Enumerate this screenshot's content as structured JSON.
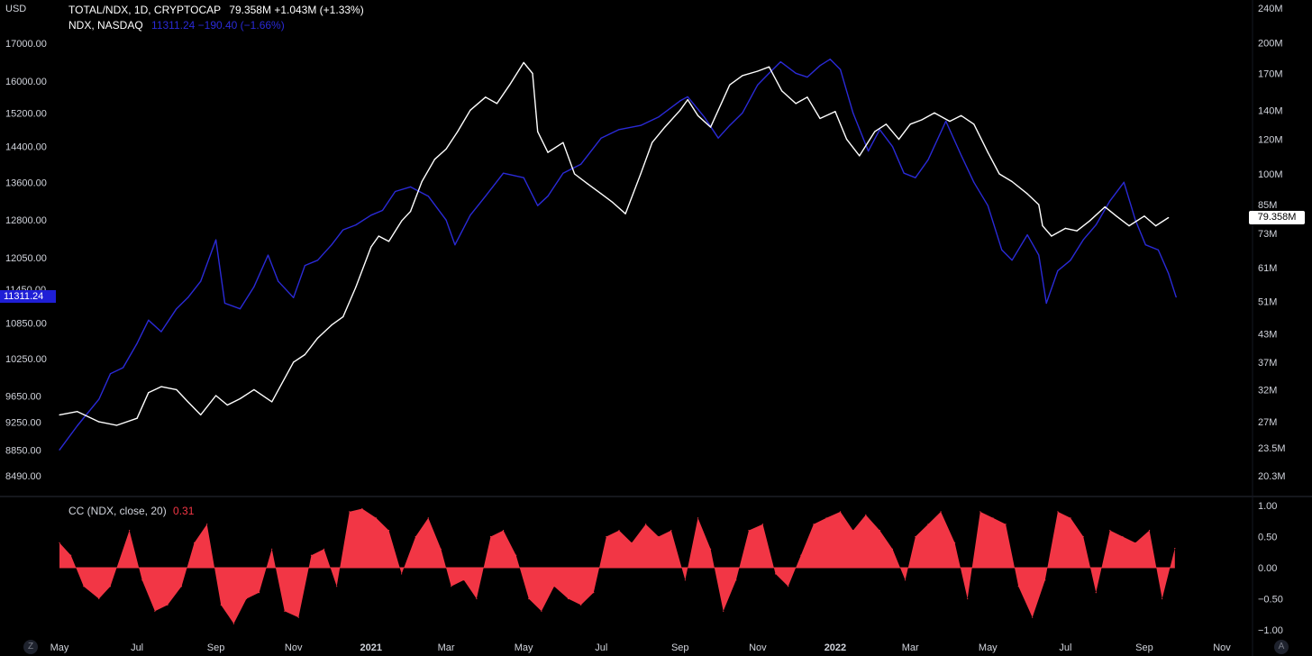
{
  "header": {
    "currency": "USD",
    "main_symbol": "TOTAL/NDX, 1D, CRYPTOCAP",
    "main_values": "79.358M  +1.043M (+1.33%)",
    "compare_symbol": "NDX, NASDAQ",
    "compare_values": "11311.24  −190.40 (−1.66%)"
  },
  "price_tags": {
    "ndx": "11311.24",
    "total": "79.358M"
  },
  "indicator": {
    "label": "CC (NDX, close, 20)",
    "value": "0.31"
  },
  "corner_buttons": {
    "left": "Z",
    "right": "A"
  },
  "colors": {
    "total": "#ffffff",
    "ndx": "#2a2ad6",
    "cc": "#f23645",
    "background": "#000000"
  },
  "chart_data": [
    {
      "type": "line",
      "title": "TOTAL/NDX, 1D, CRYPTOCAP",
      "x_labels": [
        "May",
        "Jul",
        "Sep",
        "Nov",
        "2021",
        "Mar",
        "May",
        "Jul",
        "Sep",
        "Nov",
        "2022",
        "Mar",
        "May",
        "Jul",
        "Sep",
        "Nov"
      ],
      "left_axis_ticks": [
        "17000.00",
        "16000.00",
        "15200.00",
        "14400.00",
        "13600.00",
        "12800.00",
        "12050.00",
        "11450.00",
        "10850.00",
        "10250.00",
        "9650.00",
        "9250.00",
        "8850.00",
        "8490.00"
      ],
      "right_axis_ticks": [
        "240M",
        "200M",
        "170M",
        "140M",
        "120M",
        "100M",
        "85M",
        "73M",
        "61M",
        "51M",
        "43M",
        "37M",
        "32M",
        "27M",
        "23.5M",
        "20.3M"
      ],
      "series": [
        {
          "name": "TOTAL/NDX",
          "axis": "right",
          "dates": [
            "2020-05-01",
            "2020-05-15",
            "2020-06-01",
            "2020-06-15",
            "2020-07-01",
            "2020-07-10",
            "2020-07-20",
            "2020-08-01",
            "2020-08-10",
            "2020-08-20",
            "2020-09-01",
            "2020-09-10",
            "2020-09-20",
            "2020-10-01",
            "2020-10-15",
            "2020-11-01",
            "2020-11-10",
            "2020-11-20",
            "2020-12-01",
            "2020-12-10",
            "2020-12-20",
            "2021-01-01",
            "2021-01-07",
            "2021-01-15",
            "2021-01-25",
            "2021-02-01",
            "2021-02-10",
            "2021-02-20",
            "2021-03-01",
            "2021-03-10",
            "2021-03-20",
            "2021-04-01",
            "2021-04-10",
            "2021-04-20",
            "2021-05-01",
            "2021-05-08",
            "2021-05-12",
            "2021-05-20",
            "2021-06-01",
            "2021-06-10",
            "2021-06-20",
            "2021-07-01",
            "2021-07-10",
            "2021-07-20",
            "2021-08-01",
            "2021-08-10",
            "2021-08-20",
            "2021-09-01",
            "2021-09-07",
            "2021-09-15",
            "2021-09-25",
            "2021-10-01",
            "2021-10-10",
            "2021-10-20",
            "2021-11-01",
            "2021-11-10",
            "2021-11-20",
            "2021-12-01",
            "2021-12-10",
            "2021-12-20",
            "2022-01-01",
            "2022-01-10",
            "2022-01-20",
            "2022-02-01",
            "2022-02-10",
            "2022-02-20",
            "2022-03-01",
            "2022-03-10",
            "2022-03-20",
            "2022-04-01",
            "2022-04-10",
            "2022-04-20",
            "2022-05-01",
            "2022-05-10",
            "2022-05-20",
            "2022-06-01",
            "2022-06-10",
            "2022-06-13",
            "2022-06-20",
            "2022-07-01",
            "2022-07-10",
            "2022-07-20",
            "2022-08-01",
            "2022-08-10",
            "2022-08-20",
            "2022-09-01",
            "2022-09-10",
            "2022-09-20"
          ],
          "values": [
            28.0,
            28.5,
            27.0,
            26.5,
            27.5,
            31.5,
            32.5,
            32.0,
            30.0,
            28.0,
            31.0,
            29.5,
            30.5,
            32.0,
            30.0,
            37.0,
            38.5,
            42.0,
            45.0,
            47.0,
            55.0,
            68.0,
            72.0,
            70.0,
            78.0,
            82.0,
            96.0,
            108.0,
            114.0,
            125.0,
            140.0,
            150.0,
            145.0,
            160.0,
            180.0,
            170.0,
            125.0,
            112.0,
            118.0,
            100.0,
            95.0,
            90.0,
            86.0,
            81.0,
            100.0,
            118.0,
            128.0,
            140.0,
            148.0,
            136.0,
            128.0,
            140.0,
            160.0,
            168.0,
            172.0,
            176.0,
            155.0,
            145.0,
            150.0,
            134.0,
            139.0,
            120.0,
            110.0,
            125.0,
            130.0,
            120.0,
            130.0,
            133.0,
            138.0,
            132.0,
            136.0,
            130.0,
            112.0,
            100.0,
            96.0,
            90.0,
            85.0,
            76.0,
            72.0,
            75.0,
            74.0,
            78.0,
            84.0,
            80.0,
            76.0,
            80.0,
            76.0,
            79.358
          ]
        },
        {
          "name": "NDX",
          "axis": "left",
          "dates": [
            "2020-05-01",
            "2020-05-15",
            "2020-06-01",
            "2020-06-10",
            "2020-06-20",
            "2020-07-01",
            "2020-07-10",
            "2020-07-20",
            "2020-08-01",
            "2020-08-10",
            "2020-08-20",
            "2020-09-01",
            "2020-09-08",
            "2020-09-20",
            "2020-10-01",
            "2020-10-12",
            "2020-10-20",
            "2020-11-01",
            "2020-11-10",
            "2020-11-20",
            "2020-12-01",
            "2020-12-10",
            "2020-12-20",
            "2021-01-01",
            "2021-01-10",
            "2021-01-20",
            "2021-02-01",
            "2021-02-15",
            "2021-03-01",
            "2021-03-08",
            "2021-03-20",
            "2021-04-01",
            "2021-04-15",
            "2021-05-01",
            "2021-05-12",
            "2021-05-20",
            "2021-06-01",
            "2021-06-15",
            "2021-07-01",
            "2021-07-15",
            "2021-08-01",
            "2021-08-15",
            "2021-09-01",
            "2021-09-07",
            "2021-09-20",
            "2021-10-01",
            "2021-10-10",
            "2021-10-20",
            "2021-11-01",
            "2021-11-10",
            "2021-11-19",
            "2021-12-01",
            "2021-12-10",
            "2021-12-20",
            "2021-12-28",
            "2022-01-05",
            "2022-01-15",
            "2022-01-27",
            "2022-02-05",
            "2022-02-15",
            "2022-02-24",
            "2022-03-05",
            "2022-03-15",
            "2022-03-29",
            "2022-04-10",
            "2022-04-20",
            "2022-05-01",
            "2022-05-12",
            "2022-05-20",
            "2022-06-01",
            "2022-06-10",
            "2022-06-16",
            "2022-06-25",
            "2022-07-05",
            "2022-07-15",
            "2022-07-25",
            "2022-08-05",
            "2022-08-16",
            "2022-08-25",
            "2022-09-02",
            "2022-09-12",
            "2022-09-20",
            "2022-09-26"
          ],
          "values": [
            8850,
            9200,
            9600,
            10000,
            10100,
            10500,
            10900,
            10700,
            11100,
            11300,
            11600,
            12400,
            11200,
            11100,
            11500,
            12100,
            11600,
            11300,
            11900,
            12000,
            12300,
            12600,
            12700,
            12900,
            13000,
            13400,
            13500,
            13300,
            12800,
            12300,
            12900,
            13300,
            13800,
            13700,
            13100,
            13300,
            13800,
            14000,
            14600,
            14800,
            14900,
            15100,
            15500,
            15600,
            15100,
            14600,
            14900,
            15200,
            15900,
            16200,
            16500,
            16200,
            16100,
            16400,
            16570,
            16300,
            15200,
            14300,
            14800,
            14400,
            13800,
            13700,
            14100,
            15000,
            14200,
            13600,
            13100,
            12200,
            12000,
            12500,
            12100,
            11200,
            11800,
            12000,
            12400,
            12700,
            13200,
            13600,
            12800,
            12300,
            12200,
            11750,
            11311.24
          ]
        }
      ],
      "grid": false,
      "legend": "top-left"
    },
    {
      "type": "area",
      "title": "CC (NDX, close, 20)",
      "y_ticks": [
        "1.00",
        "0.50",
        "0.00",
        "−0.50",
        "−1.00"
      ],
      "ylim": [
        -1,
        1
      ],
      "series": [
        {
          "name": "CC",
          "dates": [
            "2020-05-01",
            "2020-05-10",
            "2020-05-20",
            "2020-06-01",
            "2020-06-10",
            "2020-06-25",
            "2020-07-05",
            "2020-07-15",
            "2020-07-25",
            "2020-08-05",
            "2020-08-15",
            "2020-08-25",
            "2020-09-05",
            "2020-09-15",
            "2020-09-25",
            "2020-10-05",
            "2020-10-15",
            "2020-10-25",
            "2020-11-05",
            "2020-11-15",
            "2020-11-25",
            "2020-12-05",
            "2020-12-15",
            "2020-12-25",
            "2021-01-05",
            "2021-01-15",
            "2021-01-25",
            "2021-02-05",
            "2021-02-15",
            "2021-02-25",
            "2021-03-05",
            "2021-03-15",
            "2021-03-25",
            "2021-04-05",
            "2021-04-15",
            "2021-04-25",
            "2021-05-05",
            "2021-05-15",
            "2021-05-25",
            "2021-06-05",
            "2021-06-15",
            "2021-06-25",
            "2021-07-05",
            "2021-07-15",
            "2021-07-25",
            "2021-08-05",
            "2021-08-15",
            "2021-08-25",
            "2021-09-05",
            "2021-09-15",
            "2021-09-25",
            "2021-10-05",
            "2021-10-15",
            "2021-10-25",
            "2021-11-05",
            "2021-11-15",
            "2021-11-25",
            "2021-12-05",
            "2021-12-15",
            "2021-12-25",
            "2022-01-05",
            "2022-01-15",
            "2022-01-25",
            "2022-02-05",
            "2022-02-15",
            "2022-02-25",
            "2022-03-05",
            "2022-03-15",
            "2022-03-25",
            "2022-04-05",
            "2022-04-15",
            "2022-04-25",
            "2022-05-05",
            "2022-05-15",
            "2022-05-25",
            "2022-06-05",
            "2022-06-15",
            "2022-06-25",
            "2022-07-05",
            "2022-07-15",
            "2022-07-25",
            "2022-08-05",
            "2022-08-15",
            "2022-08-25",
            "2022-09-05",
            "2022-09-15",
            "2022-09-25"
          ],
          "values": [
            0.4,
            0.2,
            -0.3,
            -0.5,
            -0.3,
            0.6,
            -0.2,
            -0.7,
            -0.6,
            -0.3,
            0.4,
            0.7,
            -0.6,
            -0.9,
            -0.5,
            -0.4,
            0.3,
            -0.7,
            -0.8,
            0.2,
            0.3,
            -0.3,
            0.9,
            0.95,
            0.8,
            0.6,
            -0.1,
            0.5,
            0.8,
            0.3,
            -0.3,
            -0.2,
            -0.5,
            0.5,
            0.6,
            0.2,
            -0.5,
            -0.7,
            -0.3,
            -0.5,
            -0.6,
            -0.4,
            0.5,
            0.6,
            0.4,
            0.7,
            0.5,
            0.6,
            -0.2,
            0.8,
            0.3,
            -0.7,
            -0.2,
            0.6,
            0.7,
            -0.1,
            -0.3,
            0.2,
            0.7,
            0.8,
            0.9,
            0.6,
            0.85,
            0.6,
            0.3,
            -0.2,
            0.5,
            0.7,
            0.9,
            0.4,
            -0.5,
            0.9,
            0.8,
            0.7,
            -0.3,
            -0.8,
            -0.2,
            0.9,
            0.8,
            0.5,
            -0.4,
            0.6,
            0.5,
            0.4,
            0.6,
            -0.5,
            0.31
          ]
        }
      ]
    }
  ]
}
